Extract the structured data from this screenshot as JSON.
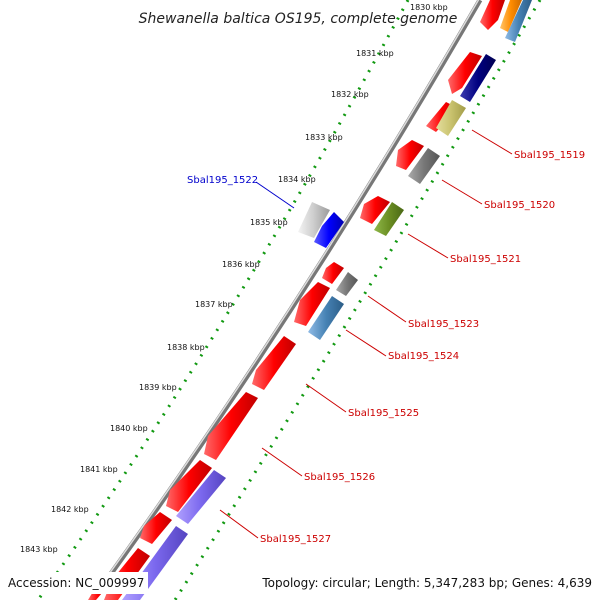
{
  "title": "Shewanella baltica OS195, complete genome",
  "footer": {
    "accession": "Accession: NC_009997",
    "summary": "Topology: circular; Length: 5,347,283 bp; Genes: 4,639"
  },
  "kbp_ticks": [
    "1830 kbp",
    "1831 kbp",
    "1832 kbp",
    "1833 kbp",
    "1834 kbp",
    "1835 kbp",
    "1836 kbp",
    "1837 kbp",
    "1838 kbp",
    "1839 kbp",
    "1840 kbp",
    "1841 kbp",
    "1842 kbp",
    "1843 kbp"
  ],
  "gene_labels": [
    "Sbal195_1519",
    "Sbal195_1520",
    "Sbal195_1521",
    "Sbal195_1522",
    "Sbal195_1523",
    "Sbal195_1524",
    "Sbal195_1525",
    "Sbal195_1526",
    "Sbal195_1527"
  ],
  "colors": {
    "forward_gene": "#ff0000",
    "label_red": "#cc0000",
    "label_blue": "#0000cc",
    "backbone": "#888888",
    "tick_dots": "#119911"
  }
}
